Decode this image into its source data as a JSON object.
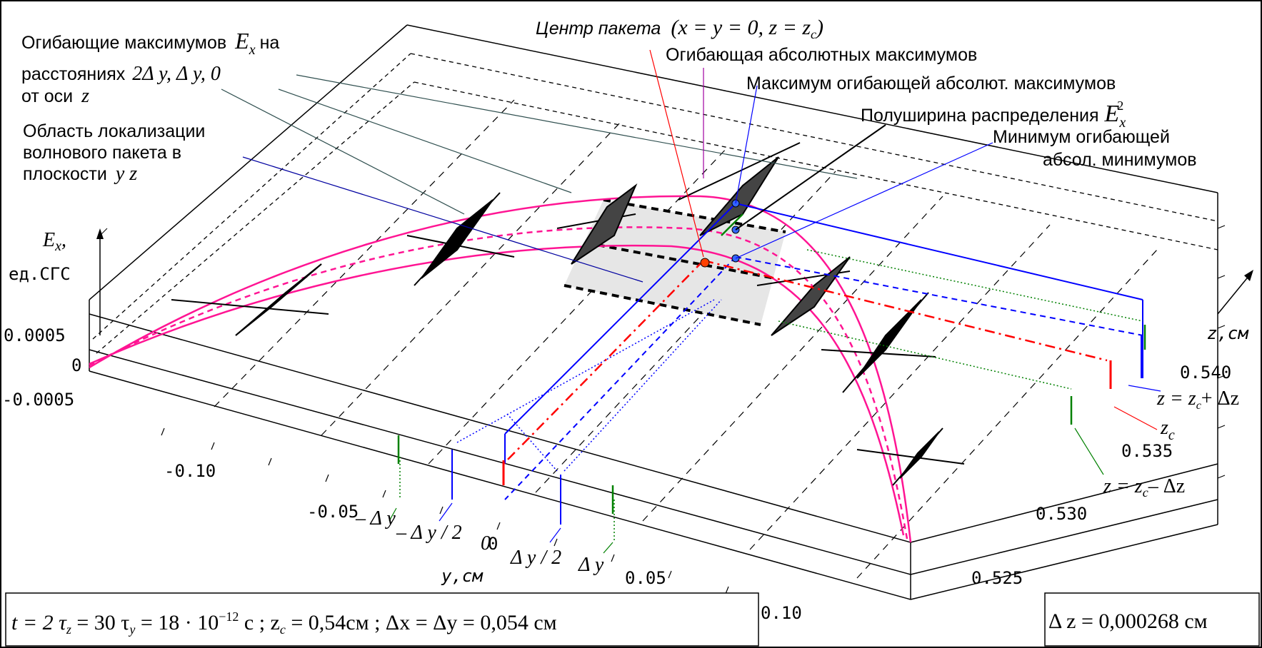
{
  "annotations": {
    "envelope_maxima_line1": "Огибающие максимумов",
    "envelope_maxima_symbol": "E",
    "envelope_maxima_symbol_sub": "x",
    "envelope_maxima_on": "на",
    "envelope_maxima_line2": "расстояниях",
    "envelope_maxima_dist": "2Δ y,  Δ y,   0",
    "envelope_maxima_line3": "от оси",
    "envelope_maxima_axis": "z",
    "localization_line1": "Область локализации",
    "localization_line2": "волнового пакета в",
    "localization_line3": "плоскости",
    "localization_plane": "y z",
    "packet_center_text": "Центр пакета",
    "packet_center_math": "(x = y = 0, z = z",
    "packet_center_sub": "c",
    "packet_center_close": ")",
    "abs_max_envelope": "Огибающая абсолютных максимумов",
    "abs_max_envelope_peak": "Максимум огибающей абсолют. максимумов",
    "half_width_text": "Полуширина распределения",
    "half_width_symbol": "E",
    "half_width_sub": "x",
    "half_width_sup": "2",
    "min_envelope_line1": "Минимум огибающей",
    "min_envelope_line2": "абсол. минимумов"
  },
  "axes": {
    "ex_label": "E",
    "ex_sub": "x",
    "ex_comma": ",",
    "ex_units": "ед.СГС",
    "ex_ticks": [
      "0.0005",
      "0",
      "-0.0005"
    ],
    "y_label": "y,см",
    "y_ticks": [
      "-0.10",
      "-0.05",
      "0",
      "0.05",
      "0.10"
    ],
    "z_label": "z,см",
    "z_ticks": [
      "0.540",
      "0.535",
      "0.530",
      "0.525"
    ]
  },
  "y_markers": {
    "minus_dy": "– Δ y",
    "minus_half_dy": "– Δ y / 2",
    "zero": "0",
    "half_dy": "Δ y / 2",
    "dy": "Δ y"
  },
  "z_markers": {
    "plus": "z = z",
    "plus_sub": "c",
    "plus_tail": "+ Δz",
    "center": "z",
    "center_sub": "c",
    "minus": "z = z",
    "minus_sub": "c",
    "minus_tail": "– Δz"
  },
  "params_box": {
    "text": "t = 2 τ",
    "t1_sub": "z",
    "t2": " = 30 τ",
    "t2_sub": "y",
    "t3": " = 18 · 10",
    "t3_sup": "−12",
    "t4": " с ;  z",
    "t4_sub": "c",
    "t5": " = 0,54см ;  Δx = Δy = 0,054 см"
  },
  "dz_box": {
    "text": "Δ z = 0,000268 см"
  },
  "colors": {
    "envelope": "#ff1493",
    "blue": "#0000ff",
    "red": "#ff0000",
    "green": "#008000",
    "region_fill": "#e6e6e6",
    "grey_line": "#404040"
  }
}
